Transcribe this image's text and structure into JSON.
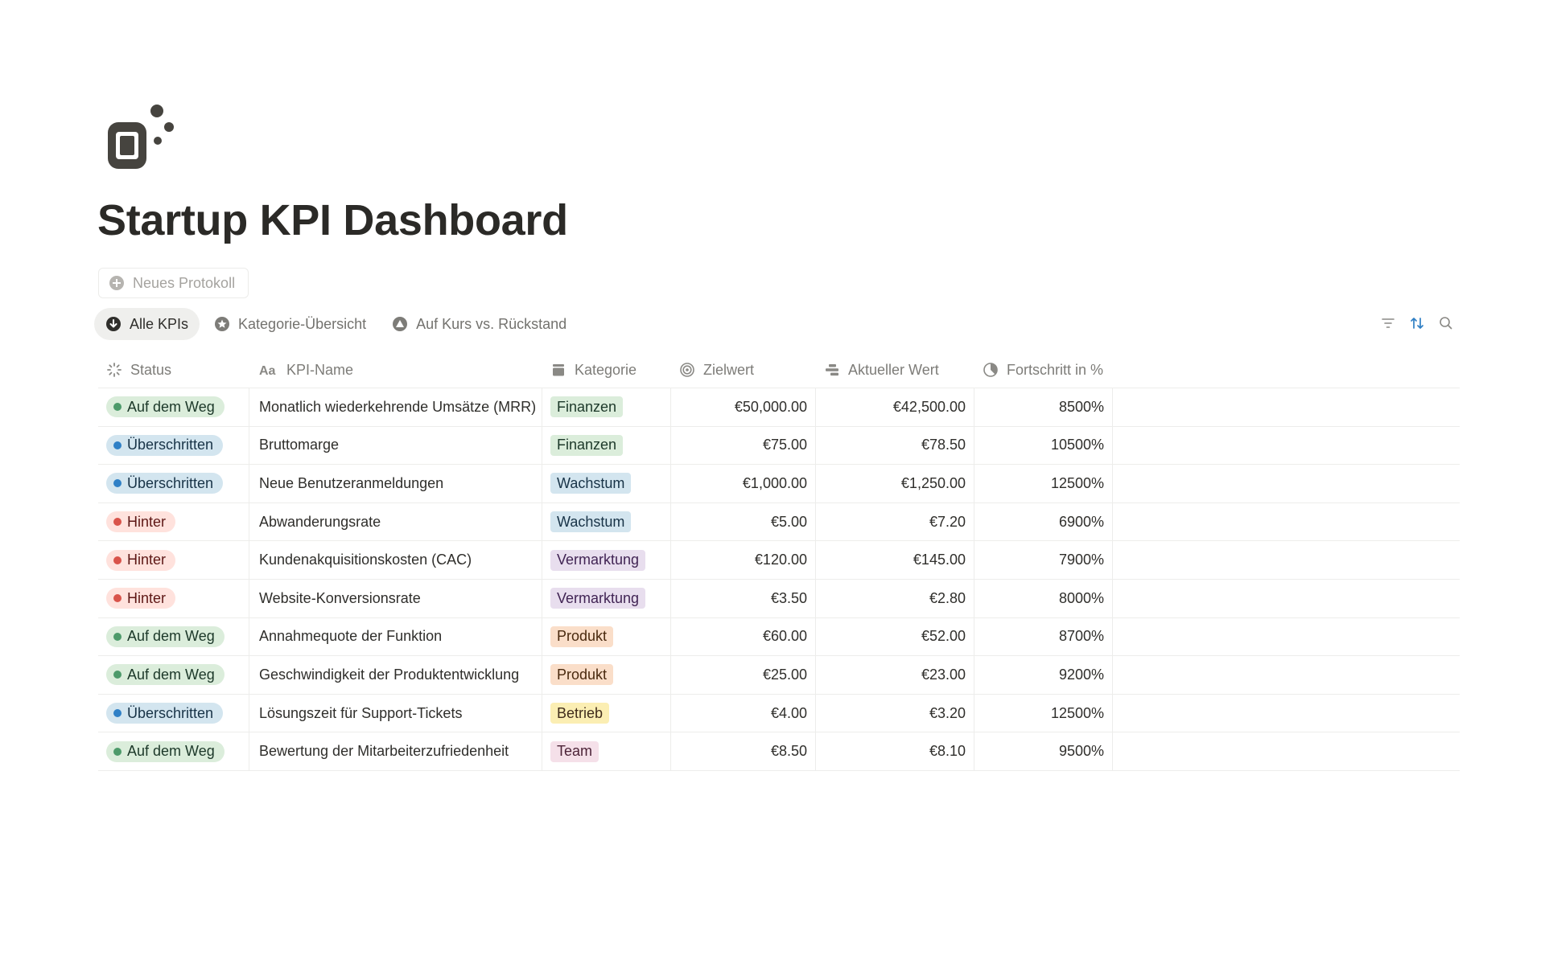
{
  "page": {
    "title": "Startup KPI Dashboard",
    "icon": "ticket-bubbles-icon"
  },
  "new_log_button": {
    "label": "Neues Protokoll",
    "icon": "plus-circle-icon"
  },
  "tabs": [
    {
      "label": "Alle KPIs",
      "icon": "arrow-down-circle-icon",
      "active": true
    },
    {
      "label": "Kategorie-Übersicht",
      "icon": "star-circle-icon",
      "active": false
    },
    {
      "label": "Auf Kurs vs. Rückstand",
      "icon": "triangle-circle-icon",
      "active": false
    }
  ],
  "toolbar": {
    "filter": "filter-icon",
    "sort": "sort-icon",
    "search": "search-icon"
  },
  "columns": {
    "status": "Status",
    "name": "KPI-Name",
    "category": "Kategorie",
    "goal": "Zielwert",
    "current": "Aktueller Wert",
    "progress": "Fortschritt in %"
  },
  "status_styles": {
    "Auf dem Weg": {
      "bg": "#dbeddb",
      "dot": "#4d9a6a",
      "fg": "#1c3829"
    },
    "Überschritten": {
      "bg": "#d3e5ef",
      "dot": "#2f80c6",
      "fg": "#183347"
    },
    "Hinter": {
      "bg": "#ffe2dd",
      "dot": "#d9534a",
      "fg": "#5d1715"
    }
  },
  "category_styles": {
    "Finanzen": {
      "bg": "#dbeddb",
      "fg": "#1c3829"
    },
    "Wachstum": {
      "bg": "#d3e5ef",
      "fg": "#183347"
    },
    "Vermarktung": {
      "bg": "#e8deee",
      "fg": "#412454"
    },
    "Produkt": {
      "bg": "#fadec9",
      "fg": "#49290e"
    },
    "Betrieb": {
      "bg": "#fbeeb3",
      "fg": "#402c1b"
    },
    "Team": {
      "bg": "#f5e0e9",
      "fg": "#4c2337"
    }
  },
  "rows": [
    {
      "status": "Auf dem Weg",
      "name": "Monatlich wiederkehrende Umsätze (MRR)",
      "category": "Finanzen",
      "goal": "€50,000.00",
      "current": "€42,500.00",
      "progress": "8500%"
    },
    {
      "status": "Überschritten",
      "name": "Bruttomarge",
      "category": "Finanzen",
      "goal": "€75.00",
      "current": "€78.50",
      "progress": "10500%"
    },
    {
      "status": "Überschritten",
      "name": "Neue Benutzeranmeldungen",
      "category": "Wachstum",
      "goal": "€1,000.00",
      "current": "€1,250.00",
      "progress": "12500%"
    },
    {
      "status": "Hinter",
      "name": "Abwanderungsrate",
      "category": "Wachstum",
      "goal": "€5.00",
      "current": "€7.20",
      "progress": "6900%"
    },
    {
      "status": "Hinter",
      "name": "Kundenakquisitionskosten (CAC)",
      "category": "Vermarktung",
      "goal": "€120.00",
      "current": "€145.00",
      "progress": "7900%"
    },
    {
      "status": "Hinter",
      "name": "Website-Konversionsrate",
      "category": "Vermarktung",
      "goal": "€3.50",
      "current": "€2.80",
      "progress": "8000%"
    },
    {
      "status": "Auf dem Weg",
      "name": "Annahmequote der Funktion",
      "category": "Produkt",
      "goal": "€60.00",
      "current": "€52.00",
      "progress": "8700%"
    },
    {
      "status": "Auf dem Weg",
      "name": "Geschwindigkeit der Produktentwicklung",
      "category": "Produkt",
      "goal": "€25.00",
      "current": "€23.00",
      "progress": "9200%"
    },
    {
      "status": "Überschritten",
      "name": "Lösungszeit für Support-Tickets",
      "category": "Betrieb",
      "goal": "€4.00",
      "current": "€3.20",
      "progress": "12500%"
    },
    {
      "status": "Auf dem Weg",
      "name": "Bewertung der Mitarbeiterzufriedenheit",
      "category": "Team",
      "goal": "€8.50",
      "current": "€8.10",
      "progress": "9500%"
    }
  ]
}
